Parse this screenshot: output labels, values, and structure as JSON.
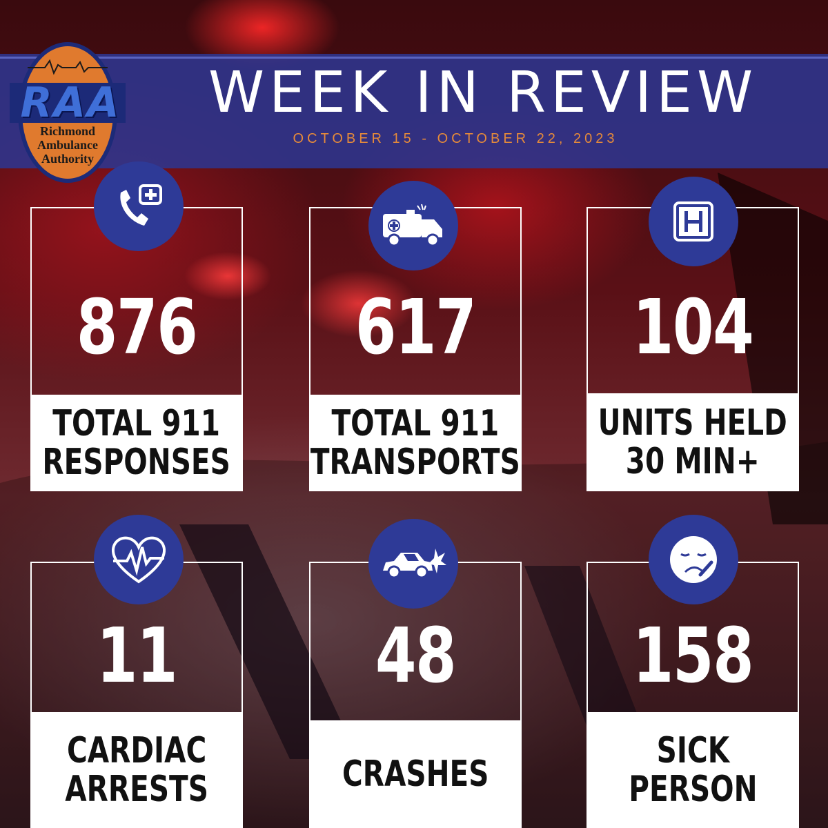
{
  "header": {
    "title": "WEEK IN REVIEW",
    "date_range": "OCTOBER 15 - OCTOBER 22, 2023"
  },
  "logo": {
    "abbr": "RAA",
    "line1": "Richmond",
    "line2": "Ambulance",
    "line3": "Authority"
  },
  "stats": [
    {
      "value": "876",
      "label1": "TOTAL 911",
      "label2": "RESPONSES",
      "icon": "phone-medical-icon"
    },
    {
      "value": "617",
      "label1": "TOTAL 911",
      "label2": "TRANSPORTS",
      "icon": "ambulance-icon"
    },
    {
      "value": "104",
      "label1": "UNITS HELD",
      "label2": "30 MIN+",
      "icon": "hospital-icon"
    },
    {
      "value": "11",
      "label1": "CARDIAC",
      "label2": "ARRESTS",
      "icon": "heart-pulse-icon"
    },
    {
      "value": "48",
      "label1": "CRASHES",
      "label2": "",
      "icon": "car-crash-icon"
    },
    {
      "value": "158",
      "label1": "SICK",
      "label2": "PERSON",
      "icon": "sick-face-icon"
    }
  ],
  "colors": {
    "band": "#2d3690",
    "icon_circle": "#2e3a97",
    "date_text": "#e58a3a",
    "logo_orange": "#e07a2e"
  }
}
